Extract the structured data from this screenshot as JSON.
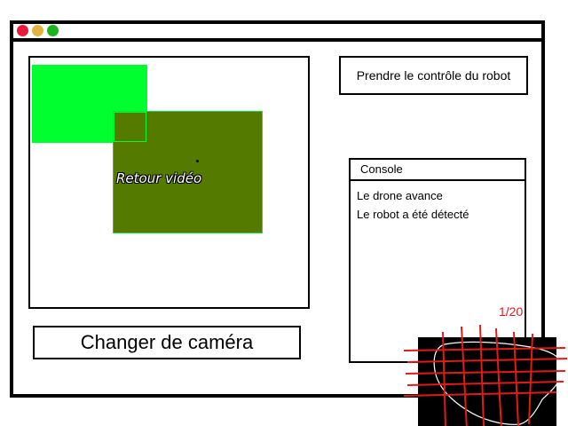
{
  "window": {
    "controls": [
      "close",
      "minimize",
      "maximize"
    ]
  },
  "video": {
    "label": "Retour vidéo"
  },
  "controls": {
    "take_control_label": "Prendre le contrôle du robot",
    "switch_camera_label": "Changer de caméra"
  },
  "console": {
    "title": "Console",
    "lines": [
      "Le drone avance",
      "Le robot a été détecté"
    ]
  },
  "map": {
    "counter": "1/20"
  },
  "colors": {
    "close": "#e8193c",
    "minimize": "#e3b341",
    "maximize": "#1db31f",
    "green_zone": "#00ff2e",
    "video_area": "#557a00",
    "grid_lines": "#e01b1b"
  }
}
